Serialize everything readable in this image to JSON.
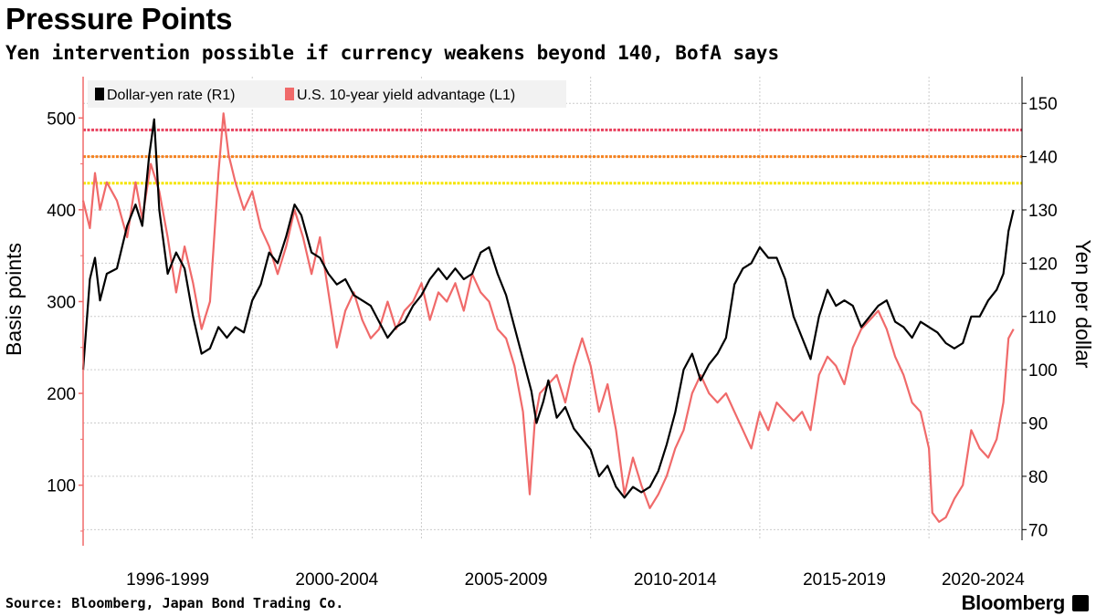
{
  "header": {
    "title": "Pressure Points",
    "subtitle": "Yen intervention possible if currency weakens beyond 140, BofA says"
  },
  "footer": {
    "source": "Source: Bloomberg, Japan Bond Trading Co.",
    "brand": "Bloomberg",
    "brand_icon": "bloomberg-terminal-icon"
  },
  "colors": {
    "yen": "#000000",
    "yield": "#f06a6a",
    "line145": "#e8415e",
    "line140": "#f5821f",
    "line135": "#f5e500",
    "grid": "#cccccc",
    "legend_bg": "#f2f2f2"
  },
  "chart_data": {
    "type": "line",
    "x_ticks": [
      "1996-1999",
      "2000-2004",
      "2005-2009",
      "2010-2014",
      "2015-2019",
      "2020-2024"
    ],
    "left_axis": {
      "label": "Basis points",
      "ticks": [
        100,
        200,
        300,
        400,
        500
      ],
      "range": [
        40,
        545
      ]
    },
    "right_axis": {
      "label": "Yen per dollar",
      "ticks": [
        70,
        80,
        90,
        100,
        110,
        120,
        130,
        140,
        150
      ],
      "range": [
        68,
        155
      ]
    },
    "x_range": [
      1995.0,
      2022.75
    ],
    "reference_lines": [
      {
        "value": 145,
        "axis": "right",
        "color": "#e8415e"
      },
      {
        "value": 140,
        "axis": "right",
        "color": "#f5821f"
      },
      {
        "value": 135,
        "axis": "right",
        "color": "#f5e500"
      }
    ],
    "legend": {
      "placement": "top-left",
      "entries": [
        "Dollar-yen rate (R1)",
        "U.S. 10-year yield advantage (L1)"
      ]
    },
    "series": [
      {
        "name": "Dollar-yen rate (R1)",
        "axis": "right",
        "color": "#000000",
        "points": [
          [
            1995.0,
            100
          ],
          [
            1995.2,
            117
          ],
          [
            1995.35,
            121
          ],
          [
            1995.5,
            113
          ],
          [
            1995.7,
            118
          ],
          [
            1996.0,
            119
          ],
          [
            1996.3,
            127
          ],
          [
            1996.55,
            131
          ],
          [
            1996.75,
            127
          ],
          [
            1996.95,
            140
          ],
          [
            1997.1,
            147
          ],
          [
            1997.25,
            130
          ],
          [
            1997.5,
            118
          ],
          [
            1997.75,
            122
          ],
          [
            1998.0,
            119
          ],
          [
            1998.25,
            110
          ],
          [
            1998.5,
            103
          ],
          [
            1998.75,
            104
          ],
          [
            1999.0,
            108
          ],
          [
            1999.25,
            106
          ],
          [
            1999.5,
            108
          ],
          [
            1999.75,
            107
          ],
          [
            2000.0,
            113
          ],
          [
            2000.25,
            116
          ],
          [
            2000.5,
            122
          ],
          [
            2000.75,
            120
          ],
          [
            2001.0,
            125
          ],
          [
            2001.25,
            131
          ],
          [
            2001.45,
            129
          ],
          [
            2001.75,
            122
          ],
          [
            2002.0,
            121
          ],
          [
            2002.25,
            118
          ],
          [
            2002.5,
            116
          ],
          [
            2002.75,
            117
          ],
          [
            2003.0,
            114
          ],
          [
            2003.25,
            113
          ],
          [
            2003.5,
            112
          ],
          [
            2003.75,
            109
          ],
          [
            2004.0,
            106
          ],
          [
            2004.25,
            108
          ],
          [
            2004.5,
            109
          ],
          [
            2004.75,
            112
          ],
          [
            2005.0,
            114
          ],
          [
            2005.25,
            117
          ],
          [
            2005.5,
            119
          ],
          [
            2005.75,
            117
          ],
          [
            2006.0,
            119
          ],
          [
            2006.25,
            117
          ],
          [
            2006.5,
            118
          ],
          [
            2006.75,
            122
          ],
          [
            2007.0,
            123
          ],
          [
            2007.25,
            118
          ],
          [
            2007.5,
            114
          ],
          [
            2007.75,
            108
          ],
          [
            2008.0,
            102
          ],
          [
            2008.25,
            96
          ],
          [
            2008.4,
            90
          ],
          [
            2008.6,
            94
          ],
          [
            2008.75,
            98
          ],
          [
            2009.0,
            91
          ],
          [
            2009.25,
            93
          ],
          [
            2009.5,
            89
          ],
          [
            2009.75,
            87
          ],
          [
            2010.0,
            85
          ],
          [
            2010.25,
            80
          ],
          [
            2010.5,
            82
          ],
          [
            2010.75,
            78
          ],
          [
            2011.0,
            76
          ],
          [
            2011.25,
            78
          ],
          [
            2011.5,
            77
          ],
          [
            2011.75,
            78
          ],
          [
            2012.0,
            81
          ],
          [
            2012.25,
            86
          ],
          [
            2012.5,
            92
          ],
          [
            2012.75,
            100
          ],
          [
            2013.0,
            103
          ],
          [
            2013.25,
            98
          ],
          [
            2013.5,
            101
          ],
          [
            2013.75,
            103
          ],
          [
            2014.0,
            106
          ],
          [
            2014.25,
            116
          ],
          [
            2014.5,
            119
          ],
          [
            2014.75,
            120
          ],
          [
            2015.0,
            123
          ],
          [
            2015.25,
            121
          ],
          [
            2015.5,
            121
          ],
          [
            2015.75,
            117
          ],
          [
            2016.0,
            110
          ],
          [
            2016.25,
            106
          ],
          [
            2016.5,
            102
          ],
          [
            2016.75,
            110
          ],
          [
            2017.0,
            115
          ],
          [
            2017.25,
            112
          ],
          [
            2017.5,
            113
          ],
          [
            2017.75,
            112
          ],
          [
            2018.0,
            108
          ],
          [
            2018.25,
            110
          ],
          [
            2018.5,
            112
          ],
          [
            2018.75,
            113
          ],
          [
            2019.0,
            109
          ],
          [
            2019.25,
            108
          ],
          [
            2019.5,
            106
          ],
          [
            2019.75,
            109
          ],
          [
            2020.0,
            108
          ],
          [
            2020.25,
            107
          ],
          [
            2020.5,
            105
          ],
          [
            2020.75,
            104
          ],
          [
            2021.0,
            105
          ],
          [
            2021.25,
            110
          ],
          [
            2021.5,
            110
          ],
          [
            2021.75,
            113
          ],
          [
            2022.0,
            115
          ],
          [
            2022.2,
            118
          ],
          [
            2022.35,
            126
          ],
          [
            2022.5,
            130
          ]
        ]
      },
      {
        "name": "U.S. 10-year yield advantage (L1)",
        "axis": "left",
        "color": "#f06a6a",
        "points": [
          [
            1995.0,
            410
          ],
          [
            1995.2,
            380
          ],
          [
            1995.35,
            440
          ],
          [
            1995.5,
            400
          ],
          [
            1995.7,
            430
          ],
          [
            1996.0,
            410
          ],
          [
            1996.3,
            370
          ],
          [
            1996.55,
            430
          ],
          [
            1996.75,
            390
          ],
          [
            1997.0,
            450
          ],
          [
            1997.25,
            420
          ],
          [
            1997.5,
            370
          ],
          [
            1997.75,
            310
          ],
          [
            1998.0,
            360
          ],
          [
            1998.25,
            320
          ],
          [
            1998.5,
            270
          ],
          [
            1998.75,
            300
          ],
          [
            1999.0,
            440
          ],
          [
            1999.15,
            505
          ],
          [
            1999.3,
            460
          ],
          [
            1999.5,
            430
          ],
          [
            1999.75,
            400
          ],
          [
            2000.0,
            420
          ],
          [
            2000.25,
            380
          ],
          [
            2000.5,
            360
          ],
          [
            2000.75,
            330
          ],
          [
            2001.0,
            360
          ],
          [
            2001.25,
            400
          ],
          [
            2001.5,
            370
          ],
          [
            2001.75,
            330
          ],
          [
            2002.0,
            370
          ],
          [
            2002.25,
            310
          ],
          [
            2002.5,
            250
          ],
          [
            2002.75,
            290
          ],
          [
            2003.0,
            310
          ],
          [
            2003.25,
            280
          ],
          [
            2003.5,
            260
          ],
          [
            2003.75,
            270
          ],
          [
            2004.0,
            300
          ],
          [
            2004.25,
            270
          ],
          [
            2004.5,
            290
          ],
          [
            2004.75,
            300
          ],
          [
            2005.0,
            320
          ],
          [
            2005.25,
            280
          ],
          [
            2005.5,
            310
          ],
          [
            2005.75,
            300
          ],
          [
            2006.0,
            320
          ],
          [
            2006.25,
            290
          ],
          [
            2006.5,
            330
          ],
          [
            2006.75,
            310
          ],
          [
            2007.0,
            300
          ],
          [
            2007.25,
            270
          ],
          [
            2007.5,
            260
          ],
          [
            2007.75,
            230
          ],
          [
            2008.0,
            180
          ],
          [
            2008.2,
            90
          ],
          [
            2008.35,
            170
          ],
          [
            2008.5,
            200
          ],
          [
            2008.75,
            210
          ],
          [
            2009.0,
            220
          ],
          [
            2009.25,
            190
          ],
          [
            2009.5,
            230
          ],
          [
            2009.75,
            260
          ],
          [
            2010.0,
            230
          ],
          [
            2010.25,
            180
          ],
          [
            2010.5,
            210
          ],
          [
            2010.75,
            160
          ],
          [
            2011.0,
            90
          ],
          [
            2011.25,
            130
          ],
          [
            2011.5,
            100
          ],
          [
            2011.75,
            75
          ],
          [
            2012.0,
            90
          ],
          [
            2012.25,
            110
          ],
          [
            2012.5,
            140
          ],
          [
            2012.75,
            160
          ],
          [
            2013.0,
            200
          ],
          [
            2013.25,
            220
          ],
          [
            2013.5,
            200
          ],
          [
            2013.75,
            190
          ],
          [
            2014.0,
            200
          ],
          [
            2014.25,
            180
          ],
          [
            2014.5,
            160
          ],
          [
            2014.75,
            140
          ],
          [
            2015.0,
            180
          ],
          [
            2015.25,
            160
          ],
          [
            2015.5,
            190
          ],
          [
            2015.75,
            180
          ],
          [
            2016.0,
            170
          ],
          [
            2016.25,
            180
          ],
          [
            2016.5,
            160
          ],
          [
            2016.75,
            220
          ],
          [
            2017.0,
            240
          ],
          [
            2017.25,
            230
          ],
          [
            2017.5,
            210
          ],
          [
            2017.75,
            250
          ],
          [
            2018.0,
            270
          ],
          [
            2018.25,
            280
          ],
          [
            2018.5,
            290
          ],
          [
            2018.75,
            270
          ],
          [
            2019.0,
            240
          ],
          [
            2019.25,
            220
          ],
          [
            2019.5,
            190
          ],
          [
            2019.75,
            180
          ],
          [
            2020.0,
            140
          ],
          [
            2020.1,
            70
          ],
          [
            2020.3,
            60
          ],
          [
            2020.5,
            65
          ],
          [
            2020.75,
            85
          ],
          [
            2021.0,
            100
          ],
          [
            2021.25,
            160
          ],
          [
            2021.5,
            140
          ],
          [
            2021.75,
            130
          ],
          [
            2022.0,
            150
          ],
          [
            2022.2,
            190
          ],
          [
            2022.35,
            260
          ],
          [
            2022.5,
            270
          ]
        ]
      }
    ]
  }
}
